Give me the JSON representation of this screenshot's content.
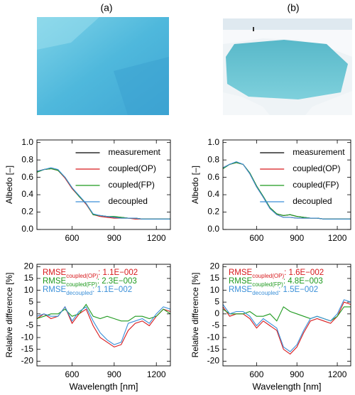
{
  "panel_labels": [
    "(a)",
    "(b)"
  ],
  "chart_data": [
    {
      "type": "line",
      "ylabel": "Albedo [–]",
      "xlim": [
        350,
        1300
      ],
      "ylim": [
        0,
        1.03
      ],
      "xticks": [
        600,
        900,
        1200
      ],
      "yticks": [
        0.0,
        0.2,
        0.4,
        0.6,
        0.8,
        {
          "value": 1.0,
          "label": "1.0"
        }
      ],
      "x": [
        350,
        400,
        450,
        500,
        550,
        600,
        650,
        700,
        750,
        800,
        850,
        900,
        950,
        1000,
        1050,
        1100,
        1150,
        1200,
        1250,
        1300
      ],
      "series": [
        {
          "name": "measurement",
          "color": "#000000",
          "values": [
            0.66,
            0.69,
            0.7,
            0.68,
            0.6,
            0.48,
            0.38,
            0.3,
            0.17,
            0.16,
            0.15,
            0.14,
            0.14,
            0.13,
            0.13,
            0.12,
            0.12,
            0.12,
            0.12,
            0.12
          ]
        },
        {
          "name": "coupled(OP)",
          "color": "#d7191c",
          "values": [
            0.67,
            0.69,
            0.7,
            0.68,
            0.59,
            0.47,
            0.38,
            0.29,
            0.17,
            0.15,
            0.14,
            0.13,
            0.13,
            0.13,
            0.12,
            0.12,
            0.12,
            0.12,
            0.12,
            0.12
          ]
        },
        {
          "name": "coupled(FP)",
          "color": "#1f9a1f",
          "values": [
            0.66,
            0.69,
            0.7,
            0.68,
            0.6,
            0.48,
            0.38,
            0.3,
            0.17,
            0.16,
            0.15,
            0.15,
            0.14,
            0.13,
            0.13,
            0.12,
            0.12,
            0.12,
            0.12,
            0.12
          ]
        },
        {
          "name": "decoupled",
          "color": "#3a8fd8",
          "values": [
            0.67,
            0.69,
            0.71,
            0.69,
            0.6,
            0.48,
            0.39,
            0.3,
            0.18,
            0.16,
            0.15,
            0.14,
            0.13,
            0.13,
            0.13,
            0.12,
            0.12,
            0.12,
            0.12,
            0.12
          ]
        }
      ]
    },
    {
      "type": "line",
      "ylabel": "Albedo [–]",
      "xlim": [
        350,
        1300
      ],
      "ylim": [
        0,
        1.03
      ],
      "xticks": [
        600,
        900,
        1200
      ],
      "yticks": [
        0.0,
        0.2,
        0.4,
        0.6,
        0.8,
        {
          "value": 1.0,
          "label": "1.0"
        }
      ],
      "x": [
        350,
        400,
        450,
        500,
        550,
        600,
        650,
        700,
        750,
        800,
        850,
        900,
        950,
        1000,
        1050,
        1100,
        1150,
        1200,
        1250,
        1300
      ],
      "series": [
        {
          "name": "measurement",
          "color": "#000000",
          "values": [
            0.7,
            0.75,
            0.77,
            0.75,
            0.65,
            0.5,
            0.38,
            0.25,
            0.18,
            0.16,
            0.17,
            0.15,
            0.14,
            0.13,
            0.13,
            0.12,
            0.12,
            0.12,
            0.12,
            0.12
          ]
        },
        {
          "name": "coupled(OP)",
          "color": "#d7191c",
          "values": [
            0.71,
            0.75,
            0.77,
            0.75,
            0.64,
            0.49,
            0.37,
            0.24,
            0.17,
            0.14,
            0.14,
            0.13,
            0.13,
            0.13,
            0.13,
            0.12,
            0.12,
            0.12,
            0.12,
            0.12
          ]
        },
        {
          "name": "coupled(FP)",
          "color": "#1f9a1f",
          "values": [
            0.7,
            0.75,
            0.77,
            0.75,
            0.65,
            0.5,
            0.38,
            0.25,
            0.18,
            0.16,
            0.17,
            0.15,
            0.14,
            0.13,
            0.13,
            0.12,
            0.12,
            0.12,
            0.12,
            0.12
          ]
        },
        {
          "name": "decoupled",
          "color": "#3a8fd8",
          "values": [
            0.71,
            0.75,
            0.78,
            0.75,
            0.64,
            0.49,
            0.37,
            0.24,
            0.17,
            0.14,
            0.14,
            0.13,
            0.13,
            0.13,
            0.13,
            0.12,
            0.12,
            0.12,
            0.12,
            0.12
          ]
        }
      ]
    },
    {
      "type": "line",
      "xlabel": "Wavelength [nm]",
      "ylabel": "Relative difference [%]",
      "xlim": [
        350,
        1300
      ],
      "ylim": [
        -22,
        21
      ],
      "xticks": [
        600,
        900,
        1200
      ],
      "yticks": [
        -20,
        -15,
        -10,
        -5,
        0,
        5,
        10,
        15,
        20
      ],
      "x": [
        350,
        400,
        450,
        500,
        550,
        600,
        650,
        700,
        750,
        800,
        850,
        900,
        950,
        1000,
        1050,
        1100,
        1150,
        1200,
        1250,
        1300
      ],
      "series": [
        {
          "name": "RMSE",
          "name_sub": "coupled(OP)",
          "note": ": 1.1E−002",
          "color": "#d7191c",
          "values": [
            -2,
            0,
            -2,
            -1,
            3,
            -4,
            0,
            2,
            -5,
            -10,
            -12,
            -14,
            -13,
            -7,
            -4,
            -3,
            -5,
            -1,
            2,
            1
          ]
        },
        {
          "name": "RMSE",
          "name_sub": "coupled(FP)",
          "note": ": 2.3E−003",
          "color": "#1f9a1f",
          "values": [
            -2,
            -1,
            0,
            0,
            2,
            -1,
            0,
            4,
            -1,
            -2,
            -1,
            -2,
            -3,
            -3,
            -1,
            -1,
            -2,
            -1,
            2,
            0
          ]
        },
        {
          "name": "RMSE",
          "name_sub": "decoupled",
          "note": ": 1.1E−002",
          "color": "#3a8fd8",
          "values": [
            -1,
            0,
            -1,
            -1,
            3,
            -3,
            1,
            3,
            -3,
            -8,
            -11,
            -13,
            -12,
            -4,
            -3,
            -2,
            -4,
            0,
            3,
            2
          ]
        }
      ]
    },
    {
      "type": "line",
      "xlabel": "Wavelength [nm]",
      "ylabel": "Relative difference [%]",
      "xlim": [
        350,
        1300
      ],
      "ylim": [
        -22,
        21
      ],
      "xticks": [
        600,
        900,
        1200
      ],
      "yticks": [
        -20,
        -15,
        -10,
        -5,
        0,
        5,
        10,
        15,
        20
      ],
      "x": [
        350,
        400,
        450,
        500,
        550,
        600,
        650,
        700,
        750,
        800,
        850,
        900,
        950,
        1000,
        1050,
        1100,
        1150,
        1200,
        1250,
        1300
      ],
      "series": [
        {
          "name": "RMSE",
          "name_sub": "coupled(OP)",
          "note": ": 1.6E−002",
          "color": "#d7191c",
          "values": [
            3,
            -1,
            0,
            0,
            -2,
            -6,
            -3,
            -5,
            -7,
            -15,
            -17,
            -14,
            -8,
            -3,
            -2,
            -3,
            -4,
            -1,
            5,
            4
          ]
        },
        {
          "name": "RMSE",
          "name_sub": "coupled(FP)",
          "note": ": 4.8E−003",
          "color": "#1f9a1f",
          "values": [
            2,
            0,
            0,
            0,
            1,
            -1,
            -1,
            0,
            -3,
            3,
            1,
            0,
            -1,
            -2,
            -1,
            -2,
            -3,
            -1,
            3,
            3
          ]
        },
        {
          "name": "RMSE",
          "name_sub": "decoupled",
          "note": ": 1.5E−002",
          "color": "#3a8fd8",
          "values": [
            4,
            0,
            1,
            1,
            -1,
            -5,
            -2,
            -4,
            -6,
            -14,
            -16,
            -13,
            -7,
            -2,
            -1,
            -2,
            -3,
            0,
            6,
            5
          ]
        }
      ]
    }
  ]
}
